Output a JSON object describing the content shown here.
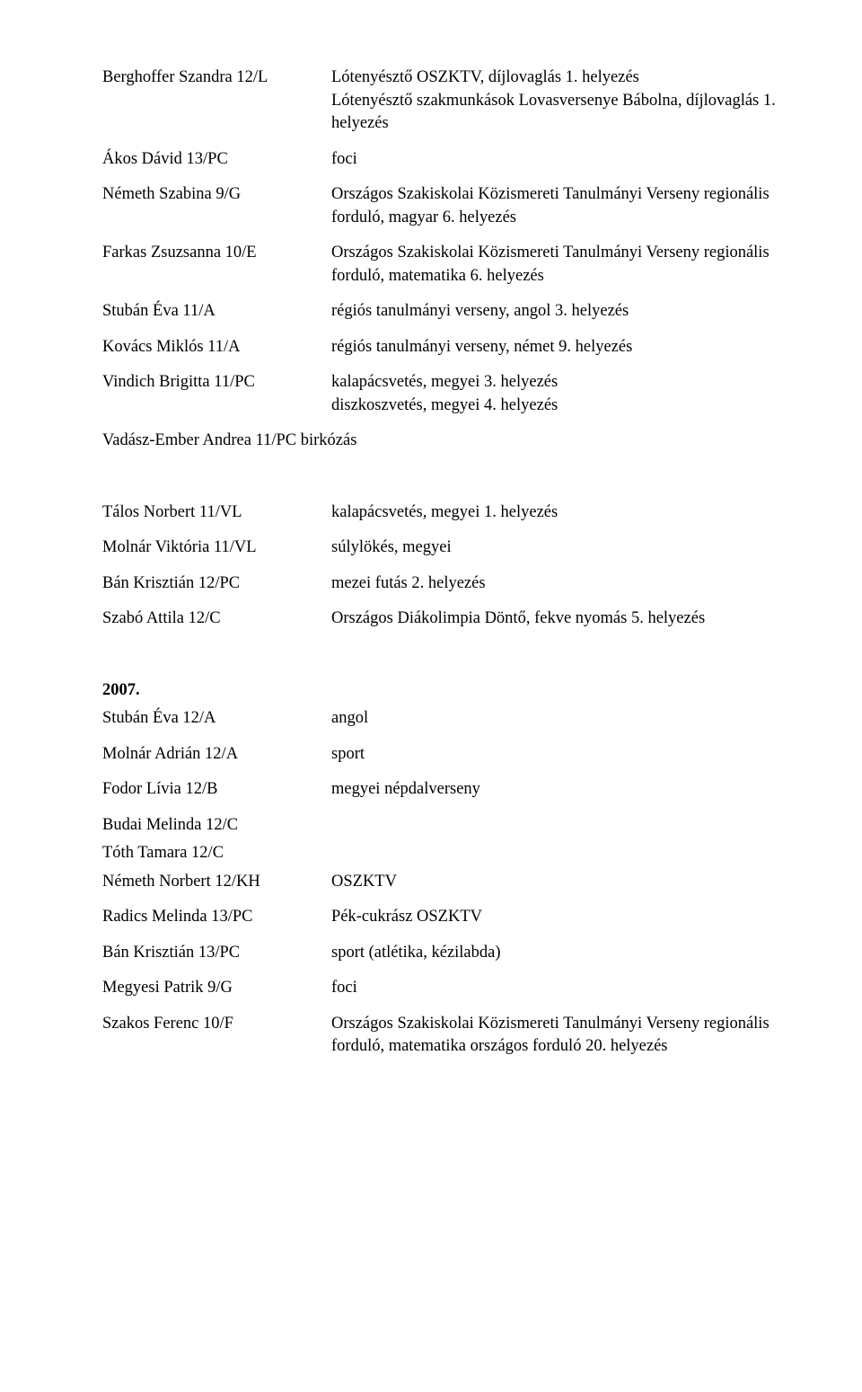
{
  "section1": {
    "rows": [
      {
        "name": "Berghoffer Szandra 12/L",
        "result": "Lótenyésztő OSZKTV, díjlovaglás 1. helyezés\nLótenyésztő szakmunkások Lovasversenye Bábolna, díjlovaglás 1. helyezés"
      },
      {
        "name": "Ákos Dávid 13/PC",
        "result": "foci"
      },
      {
        "name": "Németh Szabina 9/G",
        "result": "Országos Szakiskolai Közismereti Tanulmányi Verseny regionális forduló, magyar 6. helyezés"
      },
      {
        "name": "Farkas Zsuzsanna 10/E",
        "result": "Országos Szakiskolai Közismereti Tanulmányi Verseny regionális forduló, matematika 6. helyezés"
      },
      {
        "name": "Stubán Éva 11/A",
        "result": "régiós  tanulmányi verseny, angol 3. helyezés"
      },
      {
        "name": "Kovács Miklós 11/A",
        "result": "régiós  tanulmányi verseny, német 9. helyezés"
      },
      {
        "name": "Vindich Brigitta 11/PC",
        "result": "kalapácsvetés, megyei 3. helyezés\ndiszkoszvetés, megyei 4. helyezés"
      }
    ],
    "fullrow": "Vadász-Ember Andrea 11/PC birkózás"
  },
  "section2": {
    "rows": [
      {
        "name": "Tálos Norbert 11/VL",
        "result": "kalapácsvetés, megyei 1. helyezés"
      },
      {
        "name": "Molnár Viktória 11/VL",
        "result": "súlylökés, megyei"
      },
      {
        "name": "Bán Krisztián 12/PC",
        "result": "mezei futás 2. helyezés"
      },
      {
        "name": "Szabó Attila 12/C",
        "result": "Országos Diákolimpia Döntő, fekve nyomás 5. helyezés"
      }
    ]
  },
  "section3": {
    "year": "2007.",
    "rows": [
      {
        "name": "Stubán Éva 12/A",
        "result": "angol"
      },
      {
        "name": "Molnár Adrián 12/A",
        "result": "sport"
      },
      {
        "name": "Fodor Lívia 12/B",
        "result": "megyei népdalverseny"
      },
      {
        "name": "Budai Melinda 12/C",
        "result": ""
      },
      {
        "name": "Tóth Tamara 12/C",
        "result": ""
      },
      {
        "name": "Németh Norbert 12/KH",
        "result": "OSZKTV"
      },
      {
        "name": "Radics Melinda 13/PC",
        "result": "Pék-cukrász OSZKTV"
      },
      {
        "name": "Bán Krisztián 13/PC",
        "result": "sport (atlétika, kézilabda)"
      },
      {
        "name": "Megyesi Patrik 9/G",
        "result": "foci"
      },
      {
        "name": "Szakos Ferenc 10/F",
        "result": "Országos Szakiskolai Közismereti Tanulmányi Verseny regionális forduló, matematika országos forduló 20. helyezés"
      }
    ],
    "tightIndices": [
      3,
      4
    ]
  }
}
